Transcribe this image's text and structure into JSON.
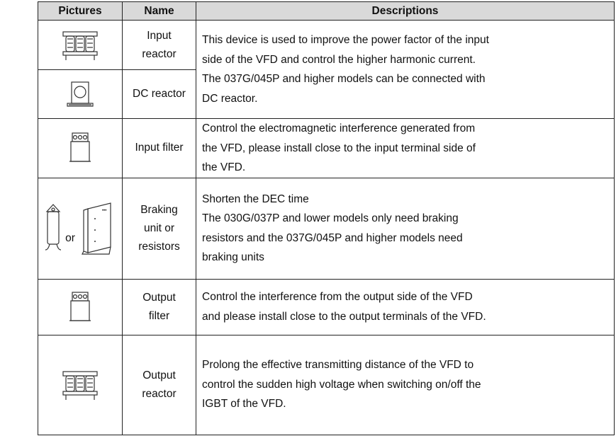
{
  "table": {
    "header": [
      "Pictures",
      "Name",
      "Descriptions"
    ],
    "rows": [
      {
        "name": [
          "Input",
          "reactor"
        ],
        "description": [
          "This device is used to improve the power factor of the input",
          "side of the VFD and control the higher harmonic current.",
          "The 037G/045P and higher models can be connected with",
          "DC reactor."
        ]
      },
      {
        "name": [
          "DC reactor"
        ]
      },
      {
        "name": [
          "Input filter"
        ],
        "description": [
          "Control the electromagnetic interference generated from",
          "the VFD, please install close to the input terminal side of",
          "the VFD."
        ]
      },
      {
        "name": [
          "Braking",
          "unit or",
          "resistors"
        ],
        "picture_note": "or",
        "description": [
          "Shorten the DEC time",
          "The 030G/037P and lower models only need braking",
          "resistors and the 037G/045P and higher models need",
          "braking units"
        ]
      },
      {
        "name": [
          "Output",
          "filter"
        ],
        "description": [
          "Control the interference from the output side of the VFD",
          "and please install close to the output terminals of the VFD."
        ]
      },
      {
        "name": [
          "Output",
          "reactor"
        ],
        "description": [
          "Prolong the effective transmitting distance of the VFD to",
          "control the sudden high voltage when switching on/off the",
          "IGBT of the VFD."
        ]
      }
    ]
  }
}
